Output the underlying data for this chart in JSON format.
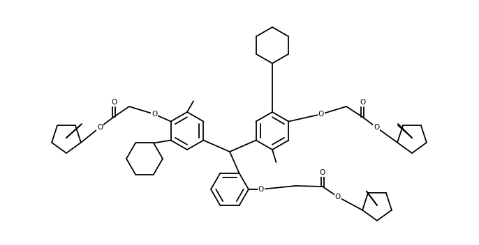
{
  "bg_color": "#ffffff",
  "line_color": "#000000",
  "lw": 1.3,
  "figsize": [
    6.86,
    3.52
  ],
  "dpi": 100,
  "xlim": [
    0,
    686
  ],
  "ylim": [
    0,
    352
  ]
}
